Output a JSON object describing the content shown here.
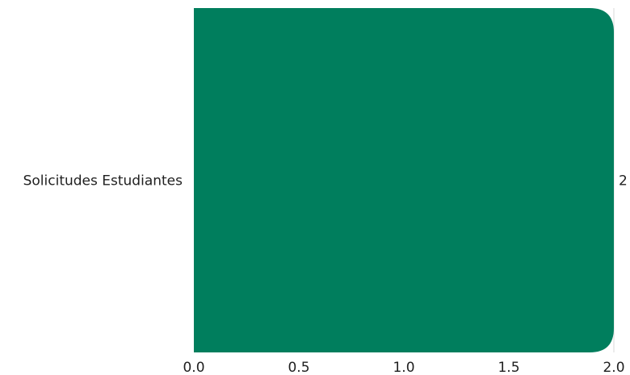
{
  "chart_data": {
    "type": "bar",
    "orientation": "horizontal",
    "categories": [
      "Solicitudes Estudiantes"
    ],
    "values": [
      2
    ],
    "data_labels": [
      "2"
    ],
    "title": "",
    "xlabel": "",
    "ylabel": "",
    "xlim": [
      0,
      2
    ],
    "x_ticks": [
      "0.0",
      "0.5",
      "1.0",
      "1.5",
      "2.0"
    ],
    "grid": false,
    "legend": "none",
    "bar_color": "#007e5d"
  }
}
